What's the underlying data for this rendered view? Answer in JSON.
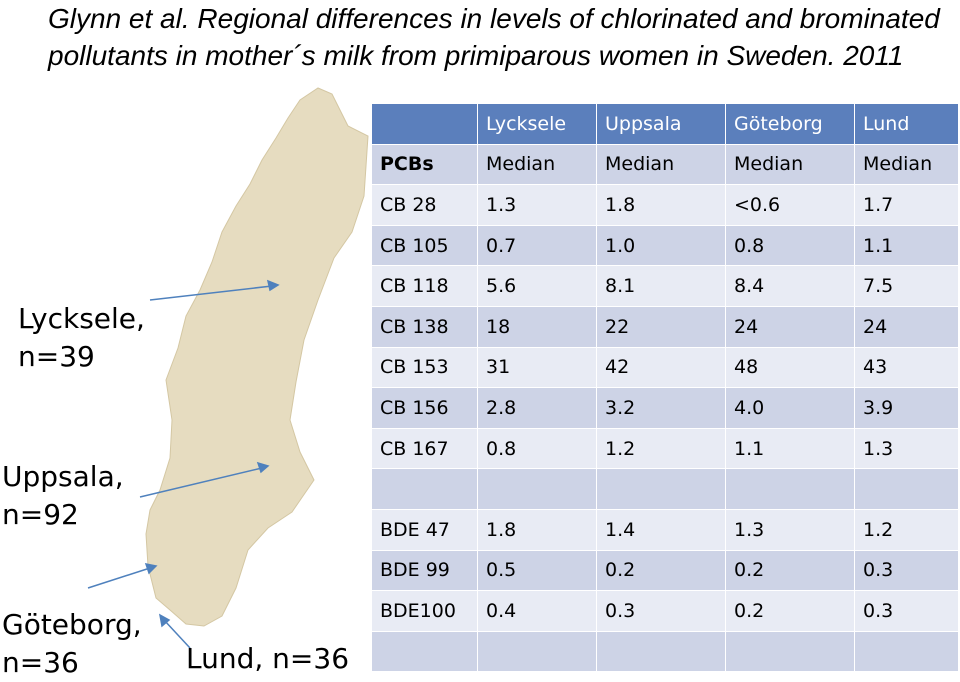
{
  "title": "Glynn et al. Regional differences in levels of chlorinated and brominated pollutants in mother´s milk from primiparous women in Sweden. 2011",
  "labels": {
    "lycksele": "Lycksele, n=39",
    "uppsala": "Uppsala, n=92",
    "goteborg": "Göteborg, n=36",
    "lund": "Lund, n=36"
  },
  "table": {
    "header": [
      "",
      "Lycksele",
      "Uppsala",
      "Göteborg",
      "Lund"
    ],
    "rows": [
      [
        "PCBs",
        "Median",
        "Median",
        "Median",
        "Median"
      ],
      [
        "CB 28",
        "1.3",
        "1.8",
        "<0.6",
        "1.7"
      ],
      [
        "CB 105",
        "0.7",
        "1.0",
        "0.8",
        "1.1"
      ],
      [
        "CB 118",
        "5.6",
        "8.1",
        "8.4",
        "7.5"
      ],
      [
        "CB 138",
        "18",
        "22",
        "24",
        "24"
      ],
      [
        "CB 153",
        "31",
        "42",
        "48",
        "43"
      ],
      [
        "CB 156",
        "2.8",
        "3.2",
        "4.0",
        "3.9"
      ],
      [
        "CB 167",
        "0.8",
        "1.2",
        "1.1",
        "1.3"
      ],
      [
        "",
        "",
        "",
        "",
        ""
      ],
      [
        "BDE 47",
        "1.8",
        "1.4",
        "1.3",
        "1.2"
      ],
      [
        "BDE 99",
        "0.5",
        "0.2",
        "0.2",
        "0.3"
      ],
      [
        "BDE100",
        "0.4",
        "0.3",
        "0.2",
        "0.3"
      ],
      [
        "",
        "",
        "",
        "",
        ""
      ]
    ]
  },
  "colors": {
    "header_bg": "#5b7fbc",
    "row_odd": "#cdd3e6",
    "row_even": "#e8ebf4",
    "map_fill": "#e6dcc0",
    "arrow": "#4f81bd"
  }
}
